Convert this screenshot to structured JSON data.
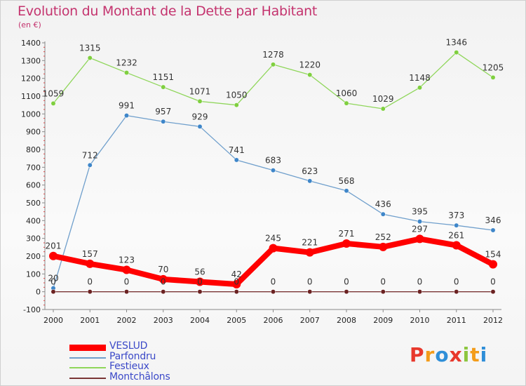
{
  "title": "Evolution du Montant de la Dette par Habitant",
  "unit_label": "(en €)",
  "logo": {
    "text": "Proxiti",
    "letters": [
      {
        "ch": "P",
        "color": "#e8382c"
      },
      {
        "ch": "r",
        "color": "#f39c1a"
      },
      {
        "ch": "o",
        "color": "#2f8fd8"
      },
      {
        "ch": "x",
        "color": "#e8382c"
      },
      {
        "ch": "i",
        "color": "#8cc63f"
      },
      {
        "ch": "t",
        "color": "#f39c1a"
      },
      {
        "ch": "i",
        "color": "#2f8fd8"
      }
    ]
  },
  "chart_data": {
    "type": "line",
    "x": [
      "2000",
      "2001",
      "2002",
      "2003",
      "2004",
      "2005",
      "2006",
      "2007",
      "2008",
      "2009",
      "2010",
      "2011",
      "2012"
    ],
    "ylim": [
      -100,
      1400
    ],
    "yticks": [
      "-100",
      "0",
      "100",
      "200",
      "300",
      "400",
      "500",
      "600",
      "700",
      "800",
      "900",
      "1000",
      "1100",
      "1200",
      "1300",
      "1400"
    ],
    "grid": false,
    "legend_position": "bottom-left",
    "series": [
      {
        "name": "VESLUD",
        "color": "#ff0000",
        "values": [
          201,
          157,
          123,
          70,
          56,
          42,
          245,
          221,
          271,
          252,
          297,
          261,
          154
        ],
        "labels": [
          "201",
          "157",
          "123",
          "70",
          "56",
          "42",
          "245",
          "221",
          "271",
          "252",
          "297",
          "261",
          "154"
        ]
      },
      {
        "name": "Parfondru",
        "color": "#6f9fcc",
        "values": [
          20,
          712,
          991,
          957,
          929,
          741,
          683,
          623,
          568,
          436,
          395,
          373,
          346
        ],
        "labels": [
          "20",
          "712",
          "991",
          "957",
          "929",
          "741",
          "683",
          "623",
          "568",
          "436",
          "395",
          "373",
          "346"
        ]
      },
      {
        "name": "Festieux",
        "color": "#8fd65a",
        "values": [
          1059,
          1315,
          1232,
          1151,
          1071,
          1050,
          1278,
          1220,
          1060,
          1029,
          1148,
          1346,
          1205
        ],
        "labels": [
          "1059",
          "1315",
          "1232",
          "1151",
          "1071",
          "1050",
          "1278",
          "1220",
          "1060",
          "1029",
          "1148",
          "1346",
          "1205"
        ]
      },
      {
        "name": "Montchâlons",
        "color": "#7a3535",
        "values": [
          0,
          0,
          0,
          0,
          0,
          0,
          0,
          0,
          0,
          0,
          0,
          0,
          0
        ],
        "labels": [
          "0",
          "0",
          "0",
          "0",
          "0",
          "0",
          "0",
          "0",
          "0",
          "0",
          "0",
          "0",
          "0"
        ]
      }
    ]
  }
}
